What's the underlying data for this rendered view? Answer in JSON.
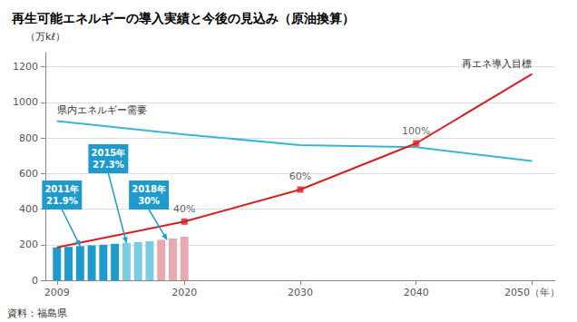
{
  "chart_data": {
    "type": "bar",
    "title": "再生可能エネルギーの導入実績と今後の見込み（原油換算）",
    "y_label": "（万kℓ）",
    "source": "資料：福島県",
    "xlim": [
      2008,
      2052
    ],
    "xticks": [
      2009,
      2020,
      2030,
      2040,
      {
        "value": 2050,
        "label": "2050（年）"
      }
    ],
    "ylim": [
      0,
      1280
    ],
    "yticks": [
      0,
      200,
      400,
      600,
      800,
      1000,
      1200
    ],
    "grid": "y",
    "series": [
      {
        "type": "bar",
        "x": [
          2009,
          2010,
          2011,
          2012,
          2013,
          2014,
          2015,
          2016,
          2017,
          2018,
          2019,
          2020
        ],
        "values": [
          185,
          188,
          192,
          196,
          200,
          205,
          210,
          215,
          220,
          228,
          235,
          245
        ],
        "colors": [
          "#1e9bcc",
          "#1e9bcc",
          "#1e9bcc",
          "#1e9bcc",
          "#1e9bcc",
          "#1e9bcc",
          "#7bcce0",
          "#7bcce0",
          "#7bcce0",
          "#e8aab0",
          "#e8aab0",
          "#e8aab0"
        ]
      },
      {
        "type": "line",
        "name": "県内エネルギー需要",
        "color": "#3ab5d4",
        "x": [
          2009,
          2020,
          2030,
          2040,
          2050
        ],
        "values": [
          895,
          820,
          760,
          748,
          670
        ]
      },
      {
        "type": "line",
        "name": "再エネ導入目標",
        "color": "#d42020",
        "x": [
          2009,
          2020,
          2030,
          2040,
          2050
        ],
        "values": [
          185,
          330,
          510,
          770,
          1160
        ]
      }
    ],
    "annotations": [
      {
        "text": "40%",
        "x": 2020,
        "y": 330,
        "marker": "square",
        "color": "#d42020"
      },
      {
        "text": "60%",
        "x": 2030,
        "y": 510,
        "marker": "square",
        "color": "#d42020"
      },
      {
        "text": "100%",
        "x": 2040,
        "y": 770,
        "marker": "square",
        "color": "#d42020"
      },
      {
        "text": "2011年\n21.9%",
        "x": 2011,
        "y": 192,
        "color": "#1e9bcc"
      },
      {
        "text": "2015年\n27.3%",
        "x": 2015,
        "y": 210,
        "color": "#1e9bcc"
      },
      {
        "text": "2018年\n30%",
        "x": 2018.5,
        "y": 228,
        "color": "#1e9bcc"
      }
    ]
  }
}
